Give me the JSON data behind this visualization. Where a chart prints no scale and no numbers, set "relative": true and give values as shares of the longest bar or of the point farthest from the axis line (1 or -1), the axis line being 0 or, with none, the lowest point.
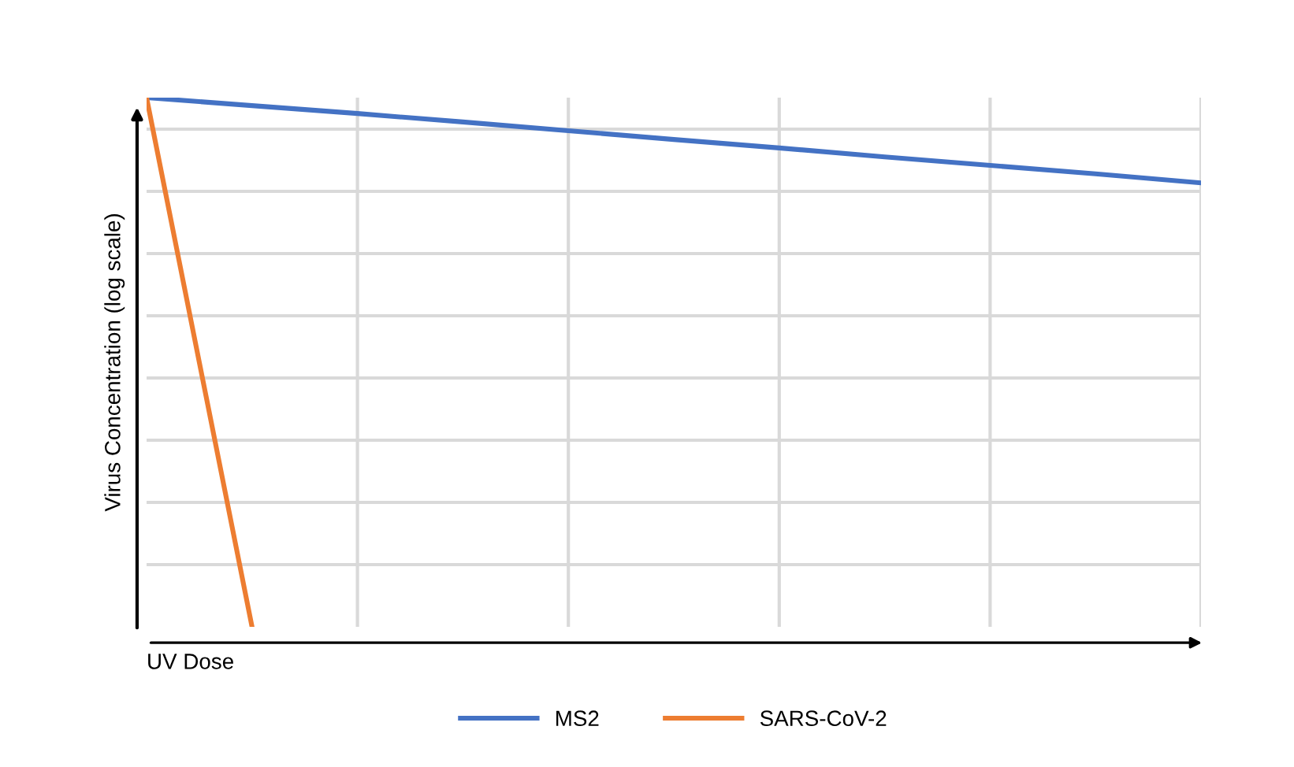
{
  "chart_data": {
    "type": "line",
    "relative": true,
    "xlabel": "UV Dose",
    "ylabel": "Virus Concentration (log scale)",
    "categories": [
      null,
      null,
      null,
      null,
      null,
      null,
      null,
      null,
      null,
      null,
      null
    ],
    "series": [
      {
        "name": "MS2",
        "color": "#4472c4",
        "values": [
          1,
          0.985,
          0.97,
          0.954,
          0.9375,
          0.921,
          0.905,
          0.888,
          0.872,
          0.856,
          0.839
        ]
      },
      {
        "name": "SARS-CoV-2",
        "color": "#ed7d31",
        "values": [
          1,
          0,
          null,
          null,
          null,
          null,
          null,
          null,
          null,
          null,
          null
        ]
      }
    ],
    "grid": true,
    "legend": "bottom",
    "tick_labels": false,
    "marker": "none",
    "line_style": "solid"
  }
}
